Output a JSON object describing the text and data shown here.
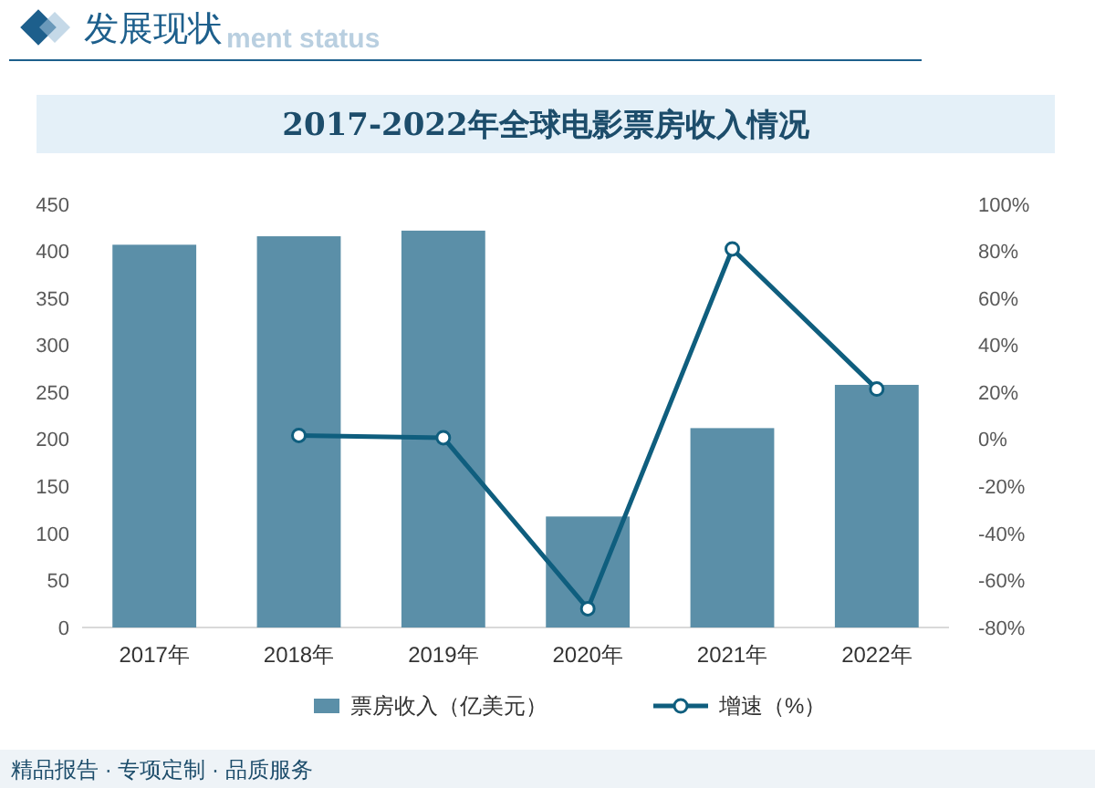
{
  "chart_data": {
    "type": "bar",
    "title": "发展现状",
    "subtitle": "2017-2022年全球电影票房收入情况",
    "annotations": [
      "ment status",
      "精品报告 · 专项定制 · 品质服务"
    ],
    "categories": [
      "2017年",
      "2018年",
      "2019年",
      "2020年",
      "2021年",
      "2022年"
    ],
    "series": [
      {
        "name": "票房收入（亿美元）",
        "color": "#5b8fa8",
        "values": [
          407,
          416,
          422,
          118,
          212,
          258
        ]
      },
      {
        "name": "增速（%）",
        "type": "line",
        "axis": "y2",
        "color": "#0f5e7e",
        "values": [
          null,
          1.7,
          0.7,
          -72,
          81,
          21.4
        ]
      }
    ],
    "ylim": [
      0,
      450
    ],
    "yticks": [
      0,
      50,
      100,
      150,
      200,
      250,
      300,
      350,
      400,
      450
    ],
    "y2lim": [
      -80,
      100
    ],
    "y2ticks": [
      {
        "value": -80,
        "label": "-80%"
      },
      {
        "value": -60,
        "label": "-60%"
      },
      {
        "value": -40,
        "label": "-40%"
      },
      {
        "value": -20,
        "label": "-20%"
      },
      {
        "value": 0,
        "label": "0%"
      },
      {
        "value": 20,
        "label": "20%"
      },
      {
        "value": 40,
        "label": "40%"
      },
      {
        "value": 60,
        "label": "60%"
      },
      {
        "value": 80,
        "label": "80%"
      },
      {
        "value": 100,
        "label": "100%"
      }
    ],
    "marker": "circle",
    "legend": "bottom"
  }
}
